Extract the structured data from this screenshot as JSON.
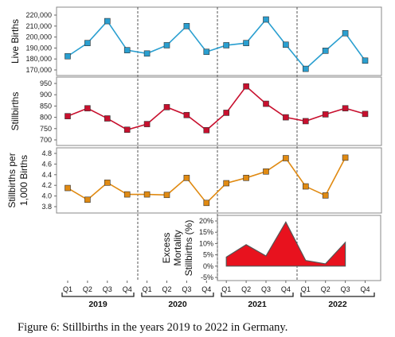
{
  "caption": "Figure 6: Stillbirths in the years 2019 to 2022 in Germany.",
  "colors": {
    "blue": "#2a9fd0",
    "red": "#c8102e",
    "orange": "#e08a12",
    "fill": "#e8121e"
  },
  "chart_data": [
    {
      "type": "line",
      "ylabel": "Live Births",
      "ylim": [
        170000,
        220000
      ],
      "yticks": [
        170000,
        180000,
        190000,
        200000,
        210000,
        220000
      ],
      "ytick_labels": [
        "170,000",
        "180,000",
        "190,000",
        "200,000",
        "210,000",
        "220,000"
      ],
      "categories": [
        "2019 Q1",
        "2019 Q2",
        "2019 Q3",
        "2019 Q4",
        "2020 Q1",
        "2020 Q2",
        "2020 Q3",
        "2020 Q4",
        "2021 Q1",
        "2021 Q2",
        "2021 Q3",
        "2021 Q4",
        "2022 Q1",
        "2022 Q2",
        "2022 Q3",
        "2022 Q4"
      ],
      "values": [
        182500,
        194500,
        214500,
        188000,
        185000,
        192500,
        210000,
        186500,
        192500,
        194500,
        216000,
        193000,
        171000,
        187500,
        203500,
        178500
      ]
    },
    {
      "type": "line",
      "ylabel": "Stillbirths",
      "ylim": [
        700,
        950
      ],
      "yticks": [
        700,
        750,
        800,
        850,
        900,
        950
      ],
      "ytick_labels": [
        "700",
        "750",
        "800",
        "850",
        "900",
        "950"
      ],
      "categories": [
        "2019 Q1",
        "2019 Q2",
        "2019 Q3",
        "2019 Q4",
        "2020 Q1",
        "2020 Q2",
        "2020 Q3",
        "2020 Q4",
        "2021 Q1",
        "2021 Q2",
        "2021 Q3",
        "2021 Q4",
        "2022 Q1",
        "2022 Q2",
        "2022 Q3",
        "2022 Q4"
      ],
      "values": [
        805,
        840,
        795,
        745,
        770,
        845,
        810,
        743,
        820,
        937,
        860,
        800,
        783,
        813,
        840,
        815
      ]
    },
    {
      "type": "line",
      "ylabel": [
        "Stillbirths per",
        "1,000 Births"
      ],
      "ylim": [
        3.8,
        4.8
      ],
      "yticks": [
        3.8,
        4.0,
        4.2,
        4.4,
        4.6,
        4.8
      ],
      "ytick_labels": [
        "3.8",
        "4.0",
        "4.2",
        "4.4",
        "4.6",
        "4.8"
      ],
      "categories": [
        "2019 Q1",
        "2019 Q2",
        "2019 Q3",
        "2019 Q4",
        "2020 Q1",
        "2020 Q2",
        "2020 Q3",
        "2020 Q4",
        "2021 Q1",
        "2021 Q2",
        "2021 Q3",
        "2021 Q4",
        "2022 Q1",
        "2022 Q2",
        "2022 Q3",
        "2022 Q4"
      ],
      "values": [
        4.15,
        3.93,
        4.25,
        4.03,
        4.03,
        4.02,
        4.34,
        3.87,
        4.24,
        4.34,
        4.46,
        4.71,
        4.18,
        4.01,
        4.72,
        null
      ]
    },
    {
      "type": "area",
      "ylabel": [
        "Excess",
        "Mortality",
        "Stillbirths (%)"
      ],
      "ylim": [
        -5,
        20
      ],
      "yticks": [
        -5,
        0,
        5,
        10,
        15,
        20
      ],
      "ytick_labels": [
        "-5%",
        "0%",
        "5%",
        "10%",
        "15%",
        "20%"
      ],
      "categories": [
        "2021 Q1",
        "2021 Q2",
        "2021 Q3",
        "2021 Q4",
        "2022 Q1",
        "2022 Q2",
        "2022 Q3"
      ],
      "values": [
        4,
        9.5,
        4.5,
        19.5,
        2.5,
        1,
        10.5
      ]
    }
  ],
  "x_axis": {
    "quarter_labels": [
      "Q1",
      "Q2",
      "Q3",
      "Q4",
      "Q1",
      "Q2",
      "Q3",
      "Q4",
      "Q1",
      "Q2",
      "Q3",
      "Q4",
      "Q1",
      "Q2",
      "Q3",
      "Q4"
    ],
    "years": [
      "2019",
      "2020",
      "2021",
      "2022"
    ]
  }
}
